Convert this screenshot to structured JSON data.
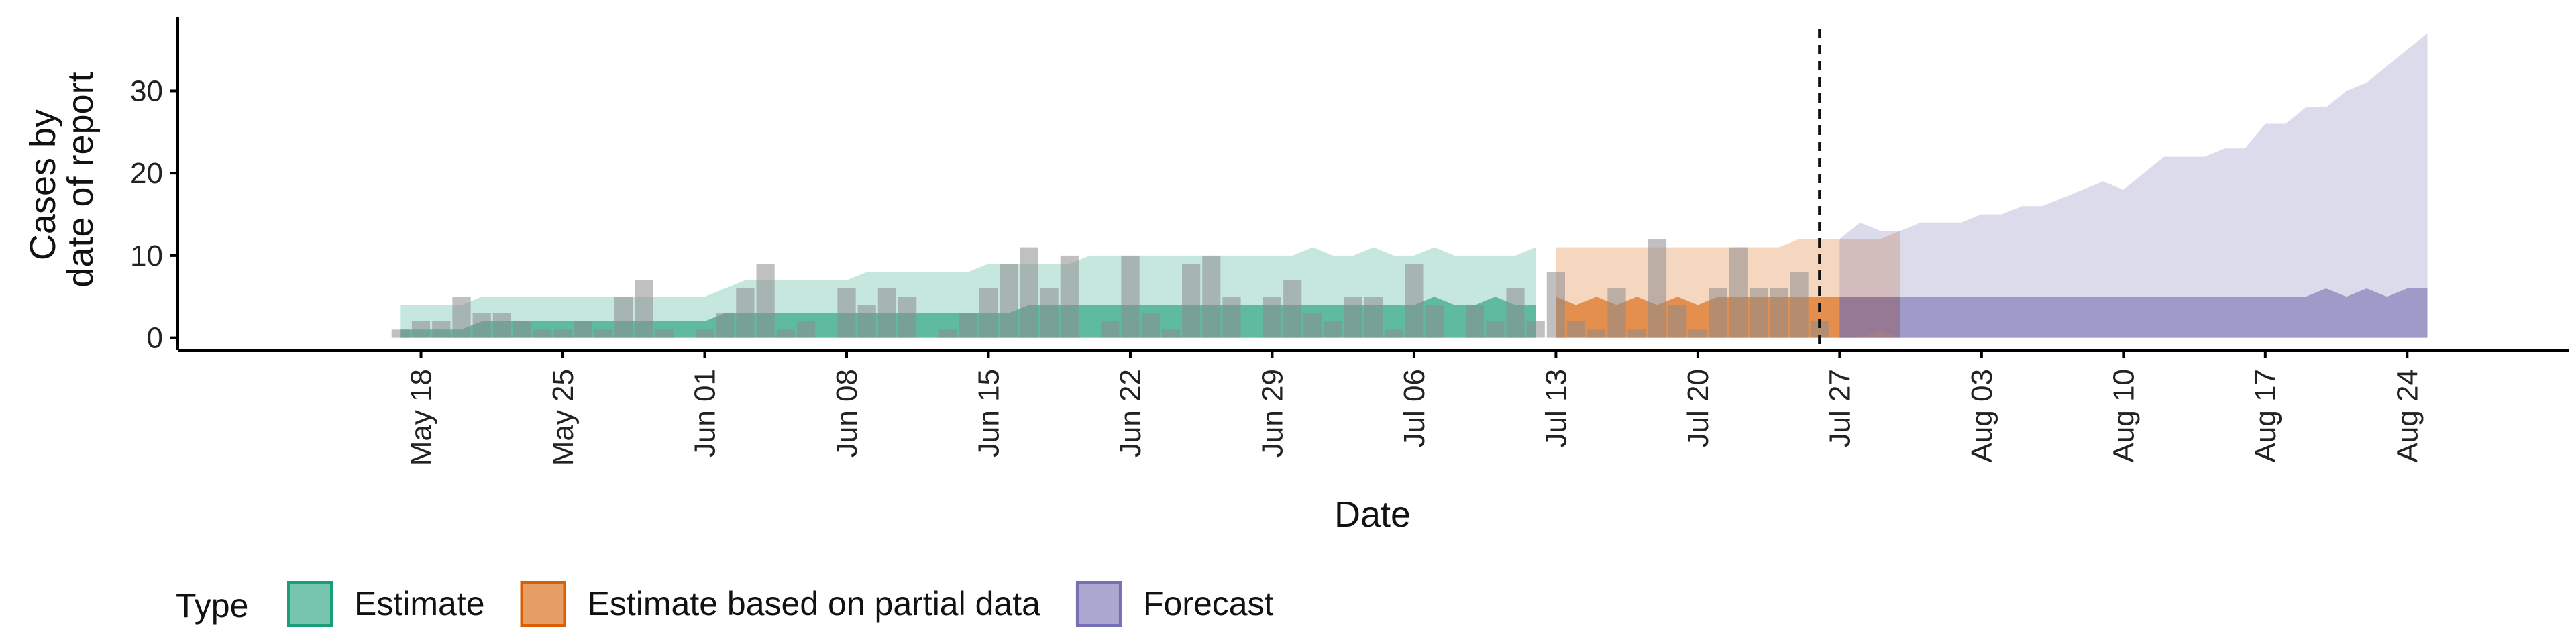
{
  "chart_data": {
    "type": "area",
    "xlabel": "Date",
    "ylabel_lines": [
      "Cases by",
      "date of report"
    ],
    "date_origin_label": "May 18",
    "x_range_days": [
      -12,
      106
    ],
    "ylim": [
      -1.5,
      39
    ],
    "y_ticks": [
      0,
      10,
      20,
      30
    ],
    "x_ticks": [
      {
        "day": 0,
        "label": "May 18"
      },
      {
        "day": 7,
        "label": "May 25"
      },
      {
        "day": 14,
        "label": "Jun 01"
      },
      {
        "day": 21,
        "label": "Jun 08"
      },
      {
        "day": 28,
        "label": "Jun 15"
      },
      {
        "day": 35,
        "label": "Jun 22"
      },
      {
        "day": 42,
        "label": "Jun 29"
      },
      {
        "day": 49,
        "label": "Jul 06"
      },
      {
        "day": 56,
        "label": "Jul 13"
      },
      {
        "day": 63,
        "label": "Jul 20"
      },
      {
        "day": 70,
        "label": "Jul 27"
      },
      {
        "day": 77,
        "label": "Aug 03"
      },
      {
        "day": 84,
        "label": "Aug 10"
      },
      {
        "day": 91,
        "label": "Aug 17"
      },
      {
        "day": 98,
        "label": "Aug 24"
      }
    ],
    "forecast_date_day": 69,
    "reported_cases": {
      "start_day": -1,
      "values": [
        1,
        2,
        2,
        5,
        3,
        3,
        2,
        1,
        1,
        2,
        1,
        5,
        7,
        1,
        0,
        1,
        3,
        6,
        9,
        1,
        2,
        0,
        6,
        4,
        6,
        5,
        0,
        1,
        3,
        6,
        9,
        11,
        6,
        10,
        0,
        2,
        10,
        3,
        1,
        9,
        10,
        5,
        0,
        5,
        7,
        3,
        2,
        5,
        5,
        1,
        9,
        4,
        0,
        4,
        2,
        6,
        2,
        8,
        2,
        1,
        6,
        1,
        12,
        4,
        1,
        6,
        11,
        6,
        6,
        8,
        2
      ]
    },
    "series": [
      {
        "name": "Estimate",
        "color": "#1b9e77",
        "start_day": -1,
        "outer_upper": [
          4,
          4,
          4,
          4,
          5,
          5,
          5,
          5,
          5,
          5,
          5,
          5,
          5,
          5,
          5,
          5,
          6,
          7,
          7,
          7,
          7,
          7,
          7,
          8,
          8,
          8,
          8,
          8,
          8,
          9,
          9,
          9,
          9,
          9,
          10,
          10,
          10,
          10,
          10,
          10,
          10,
          10,
          10,
          10,
          10,
          11,
          10,
          10,
          11,
          10,
          10,
          11,
          10,
          10,
          10,
          10,
          11
        ],
        "outer_lower": [
          0,
          0,
          0,
          0,
          0,
          0,
          0,
          0,
          0,
          0,
          0,
          0,
          0,
          0,
          0,
          0,
          0,
          0,
          0,
          0,
          0,
          0,
          0,
          0,
          0,
          0,
          0,
          0,
          0,
          0,
          0,
          0,
          0,
          0,
          0,
          0,
          0,
          0,
          0,
          0,
          0,
          0,
          0,
          0,
          0,
          0,
          0,
          0,
          0,
          0,
          0,
          0,
          0,
          0,
          0,
          0,
          0
        ],
        "inner_upper": [
          1,
          1,
          1,
          1,
          2,
          2,
          2,
          2,
          2,
          2,
          2,
          2,
          2,
          2,
          2,
          2,
          3,
          3,
          3,
          3,
          3,
          3,
          3,
          3,
          3,
          3,
          3,
          3,
          3,
          3,
          3,
          4,
          4,
          4,
          4,
          4,
          4,
          4,
          4,
          4,
          4,
          4,
          4,
          4,
          4,
          4,
          4,
          4,
          4,
          4,
          4,
          5,
          4,
          4,
          5,
          4,
          4
        ],
        "inner_lower": [
          0,
          0,
          0,
          0,
          0,
          0,
          0,
          0,
          0,
          0,
          0,
          0,
          0,
          0,
          0,
          0,
          0,
          0,
          0,
          0,
          0,
          0,
          0,
          0,
          0,
          0,
          0,
          0,
          0,
          0,
          0,
          0,
          0,
          0,
          0,
          0,
          0,
          0,
          0,
          0,
          0,
          0,
          0,
          0,
          0,
          0,
          0,
          0,
          0,
          0,
          0,
          0,
          0,
          0,
          0,
          0,
          0
        ]
      },
      {
        "name": "Estimate based on partial data",
        "color": "#d95f02",
        "start_day": 56,
        "outer_upper": [
          11,
          11,
          11,
          11,
          11,
          11,
          11,
          11,
          11,
          11,
          11,
          11,
          12,
          12,
          12,
          12,
          12,
          13
        ],
        "outer_lower": [
          0,
          0,
          0,
          0,
          0,
          0,
          0,
          0,
          0,
          0,
          0,
          0,
          0,
          0,
          0,
          0,
          0,
          0
        ],
        "inner_upper": [
          5,
          4,
          5,
          4,
          5,
          4,
          5,
          4,
          5,
          5,
          5,
          5,
          5,
          5,
          5,
          5,
          5,
          5
        ],
        "inner_lower": [
          0,
          0,
          0,
          0,
          0,
          0,
          0,
          0,
          0,
          0,
          0,
          0,
          0,
          0,
          0,
          0,
          0,
          0
        ]
      },
      {
        "name": "Forecast",
        "color": "#7570b3",
        "start_day": 70,
        "outer_upper": [
          12,
          14,
          13,
          13,
          14,
          14,
          14,
          15,
          15,
          16,
          16,
          17,
          18,
          19,
          18,
          20,
          22,
          22,
          22,
          23,
          23,
          26,
          26,
          28,
          28,
          30,
          31,
          33,
          35,
          37
        ],
        "outer_lower": [
          0,
          0,
          1,
          0,
          0,
          0,
          0,
          0,
          0,
          0,
          0,
          0,
          0,
          0,
          0,
          0,
          0,
          0,
          0,
          0,
          0,
          0,
          0,
          0,
          0,
          0,
          0,
          0,
          0,
          0
        ],
        "inner_upper": [
          5,
          5,
          5,
          5,
          5,
          5,
          5,
          5,
          5,
          5,
          5,
          5,
          5,
          5,
          5,
          5,
          5,
          5,
          5,
          5,
          5,
          5,
          5,
          5,
          6,
          5,
          6,
          5,
          6,
          6
        ],
        "inner_lower": [
          0,
          0,
          0,
          0,
          0,
          0,
          0,
          0,
          0,
          0,
          0,
          0,
          0,
          0,
          0,
          0,
          0,
          0,
          0,
          0,
          0,
          0,
          0,
          0,
          0,
          0,
          0,
          0,
          0,
          0
        ]
      }
    ],
    "legend": {
      "title": "Type",
      "position": "bottom",
      "items": [
        {
          "label": "Estimate",
          "color": "#1b9e77"
        },
        {
          "label": "Estimate based on partial data",
          "color": "#d95f02"
        },
        {
          "label": "Forecast",
          "color": "#7570b3"
        }
      ]
    }
  }
}
